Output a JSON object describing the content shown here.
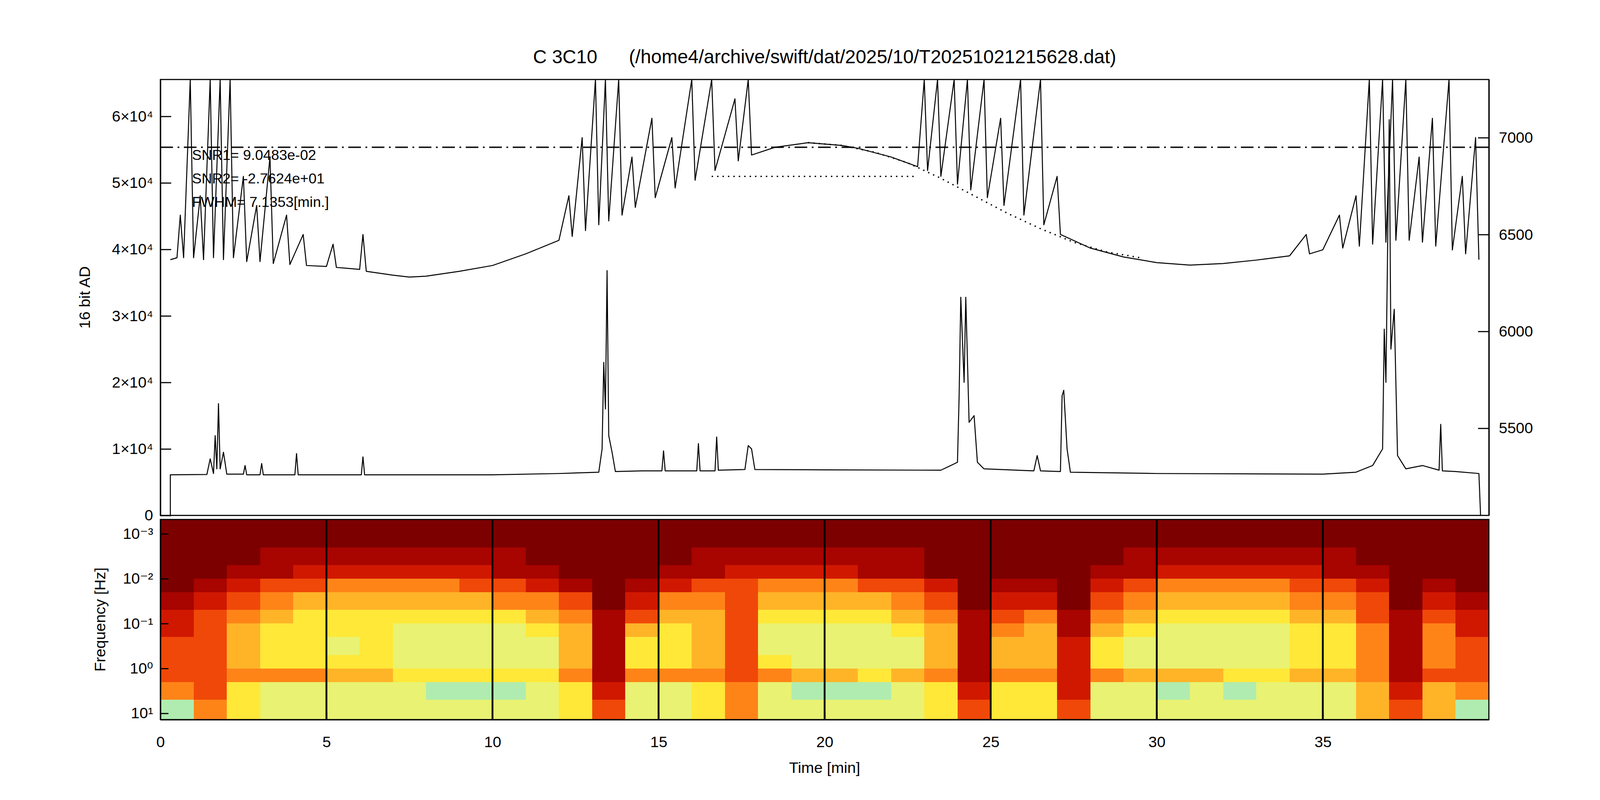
{
  "chart_data": [
    {
      "type": "line",
      "title": "C 3C10      (/home4/archive/swift/dat/2025/10/T20251021215628.dat)",
      "ylabel": "16 bit AD",
      "annotations": [
        "SNR1= 9.0483e-02",
        "SNR2= -2.7624e+01",
        "FWHM= 7.1353[min.]"
      ],
      "xlim": [
        0,
        40
      ],
      "ylim": [
        0,
        65536
      ],
      "yticks": [
        0,
        {
          "value": 10000,
          "label": "1×10⁴"
        },
        {
          "value": 20000,
          "label": "2×10⁴"
        },
        {
          "value": 30000,
          "label": "3×10⁴"
        },
        {
          "value": 40000,
          "label": "4×10⁴"
        },
        {
          "value": 50000,
          "label": "5×10⁴"
        },
        {
          "value": 60000,
          "label": "6×10⁴"
        }
      ],
      "y2lim": [
        5050,
        7300
      ],
      "y2ticks": [
        5500,
        6000,
        6500,
        7000
      ],
      "tick_labels": "y",
      "series": [
        {
          "color": "#000000",
          "line_style": "solid",
          "x": [
            0.3,
            0.3,
            1.4,
            1.5,
            1.6,
            1.65,
            1.7,
            1.75,
            1.8,
            1.9,
            2.0,
            2.5,
            2.55,
            2.6,
            3.0,
            3.05,
            3.1,
            4.05,
            4.1,
            4.15,
            6.05,
            6.1,
            6.15,
            10,
            12,
            13.2,
            13.3,
            13.35,
            13.4,
            13.45,
            13.5,
            13.6,
            13.7,
            14.5,
            15.1,
            15.15,
            15.2,
            16.15,
            16.2,
            16.25,
            16.7,
            16.75,
            16.8,
            17.6,
            17.7,
            17.8,
            17.9,
            20,
            23.5,
            23.8,
            24.0,
            24.05,
            24.1,
            24.2,
            24.25,
            24.35,
            24.5,
            24.6,
            24.8,
            26.3,
            26.4,
            26.5,
            27.1,
            27.15,
            27.2,
            27.3,
            27.4,
            30,
            35,
            36,
            36.5,
            36.8,
            36.85,
            36.9,
            37.0,
            37.05,
            37.15,
            37.25,
            37.5,
            38.0,
            38.5,
            38.55,
            38.6,
            39.0,
            39.7,
            39.75
          ],
          "values": [
            0,
            6100,
            6150,
            8500,
            6300,
            12000,
            7000,
            16800,
            7000,
            9500,
            6200,
            6200,
            7500,
            6100,
            6100,
            7800,
            6100,
            6100,
            9300,
            6100,
            6100,
            8800,
            6100,
            6100,
            6300,
            6500,
            10000,
            23000,
            16000,
            36800,
            12000,
            9500,
            6600,
            6700,
            6700,
            9700,
            6700,
            6700,
            10800,
            6700,
            6700,
            11800,
            6800,
            6900,
            10500,
            10000,
            6900,
            6850,
            6800,
            7500,
            8000,
            18000,
            32800,
            20000,
            32800,
            14000,
            15000,
            8000,
            7000,
            6700,
            9000,
            6700,
            6600,
            18000,
            18800,
            10000,
            6500,
            6300,
            6200,
            6500,
            7500,
            10000,
            28000,
            20000,
            59500,
            25000,
            31000,
            9000,
            7000,
            7500,
            6800,
            13700,
            6700,
            6600,
            6300,
            0
          ]
        },
        {
          "color": "#000000",
          "line_style": "solid",
          "axis": "y2",
          "x": [
            0.3,
            0.5,
            0.6,
            0.7,
            0.9,
            1.0,
            1.2,
            1.3,
            1.5,
            1.6,
            1.8,
            1.9,
            2.1,
            2.2,
            2.5,
            2.6,
            2.9,
            3.0,
            3.3,
            3.4,
            3.8,
            3.9,
            4.3,
            4.4,
            5.0,
            5.2,
            5.3,
            6.0,
            6.1,
            6.2,
            7.0,
            7.5,
            8.0,
            9.0,
            10.0,
            11.0,
            12.0,
            12.3,
            12.4,
            12.7,
            12.8,
            13.1,
            13.2,
            13.4,
            13.5,
            13.8,
            13.9,
            14.2,
            14.3,
            14.8,
            14.9,
            15.4,
            15.5,
            16.0,
            16.1,
            16.6,
            16.7,
            17.3,
            17.4,
            17.7,
            17.8,
            18.5,
            19.5,
            20.5,
            21.0,
            22.0,
            22.8,
            23.0,
            23.1,
            23.4,
            23.5,
            23.9,
            24.0,
            24.3,
            24.4,
            24.8,
            24.9,
            25.3,
            25.4,
            25.9,
            26.0,
            26.5,
            26.6,
            27.0,
            27.1,
            28.0,
            29.0,
            30.0,
            31.0,
            32.0,
            33.0,
            34.0,
            34.5,
            34.6,
            35.0,
            35.5,
            35.6,
            36.0,
            36.1,
            36.4,
            36.5,
            36.8,
            36.9,
            37.1,
            37.2,
            37.5,
            37.6,
            37.9,
            38.0,
            38.3,
            38.4,
            38.8,
            38.9,
            39.2,
            39.3,
            39.6,
            39.7
          ],
          "values": [
            6370,
            6380,
            6600,
            6380,
            7300,
            6380,
            6700,
            6370,
            7300,
            6380,
            7300,
            6370,
            7300,
            6380,
            6800,
            6360,
            6650,
            6360,
            6900,
            6350,
            6600,
            6345,
            6500,
            6340,
            6335,
            6450,
            6330,
            6320,
            6500,
            6310,
            6290,
            6280,
            6285,
            6310,
            6340,
            6400,
            6470,
            6700,
            6490,
            7000,
            6520,
            7300,
            6550,
            7300,
            6570,
            7300,
            6600,
            6900,
            6640,
            7100,
            6690,
            7000,
            6740,
            7300,
            6780,
            7300,
            6830,
            7200,
            6880,
            7300,
            6910,
            6950,
            6974,
            6960,
            6945,
            6900,
            6850,
            7300,
            6830,
            7300,
            6800,
            7300,
            6760,
            7300,
            6730,
            7300,
            6690,
            7100,
            6650,
            7300,
            6600,
            7300,
            6550,
            6800,
            6500,
            6430,
            6384,
            6355,
            6342,
            6350,
            6368,
            6390,
            6500,
            6400,
            6421,
            6600,
            6430,
            6700,
            6440,
            7300,
            6450,
            7300,
            6460,
            7300,
            6470,
            7300,
            6470,
            6900,
            6460,
            7100,
            6440,
            7300,
            6420,
            6800,
            6400,
            7000,
            6370
          ]
        },
        {
          "color": "#000000",
          "line_style": "dotted",
          "axis": "y2",
          "x": [
            19.5,
            20.5,
            21.5,
            22.5,
            23.5,
            24.5,
            25.5,
            26.5,
            27.5,
            28.5,
            29.5
          ],
          "values": [
            6974,
            6960,
            6925,
            6870,
            6790,
            6700,
            6610,
            6530,
            6460,
            6410,
            6380
          ]
        },
        {
          "color": "#000000",
          "line_style": "dotted",
          "axis": "y2",
          "x": [
            16.6,
            22.8
          ],
          "values": [
            6800,
            6800
          ]
        },
        {
          "color": "#000000",
          "line_style": "dashdot",
          "axis": "y2",
          "x": [
            0,
            40
          ],
          "values": [
            6950,
            6950
          ]
        }
      ]
    },
    {
      "type": "heatmap",
      "xlabel": "Time [min]",
      "ylabel": "Frequency [Hz]",
      "xlim": [
        0,
        40
      ],
      "ylim": [
        0.00048,
        13.8
      ],
      "log": "y",
      "grid": true,
      "xticks": [
        0,
        5,
        10,
        15,
        20,
        25,
        30,
        35
      ],
      "yticks": [
        {
          "value": 0.001,
          "label": "10⁻³"
        },
        {
          "value": 0.01,
          "label": "10⁻²"
        },
        {
          "value": 0.1,
          "label": "10⁻¹"
        },
        {
          "value": 1,
          "label": "10⁰"
        },
        {
          "value": 10,
          "label": "10¹"
        }
      ],
      "zlim": [
        0,
        9
      ],
      "x_edges": [
        0,
        1,
        2,
        3,
        4,
        5,
        6,
        7,
        8,
        9,
        10,
        11,
        12,
        13,
        14,
        15,
        16,
        17,
        18,
        19,
        20,
        21,
        22,
        23,
        24,
        25,
        26,
        27,
        28,
        29,
        30,
        31,
        32,
        33,
        34,
        35,
        36,
        37,
        38,
        39,
        40
      ],
      "y_edges": [
        0.00048,
        0.001,
        0.002,
        0.005,
        0.01,
        0.02,
        0.05,
        0.1,
        0.2,
        0.5,
        1,
        2,
        5,
        13.8
      ],
      "cells": [
        [
          9,
          9,
          9,
          9,
          9,
          9,
          9,
          9,
          9,
          9,
          9,
          9,
          9,
          9,
          9,
          9,
          9,
          9,
          9,
          9,
          9,
          9,
          9,
          9,
          9,
          9,
          9,
          9,
          9,
          9,
          9,
          9,
          9,
          9,
          9,
          9,
          9,
          9,
          9,
          9
        ],
        [
          9,
          9,
          9,
          9,
          9,
          9,
          9,
          9,
          9,
          9,
          9,
          9,
          9,
          9,
          9,
          9,
          9,
          9,
          9,
          9,
          9,
          9,
          9,
          9,
          9,
          9,
          9,
          9,
          9,
          9,
          9,
          9,
          9,
          9,
          9,
          9,
          9,
          9,
          9,
          9
        ],
        [
          9,
          9,
          9,
          8,
          8,
          8,
          8,
          8,
          8,
          8,
          8,
          9,
          9,
          9,
          9,
          9,
          8,
          8,
          8,
          8,
          8,
          8,
          8,
          9,
          9,
          9,
          9,
          9,
          9,
          8,
          8,
          8,
          8,
          8,
          8,
          8,
          9,
          9,
          9,
          9
        ],
        [
          9,
          9,
          8,
          8,
          7,
          7,
          7,
          7,
          7,
          7,
          8,
          8,
          9,
          9,
          9,
          8,
          8,
          7,
          7,
          7,
          7,
          8,
          8,
          9,
          9,
          9,
          9,
          9,
          8,
          8,
          7,
          7,
          7,
          7,
          7,
          8,
          8,
          9,
          9,
          9
        ],
        [
          9,
          8,
          7,
          6,
          6,
          5,
          5,
          5,
          5,
          6,
          6,
          7,
          8,
          9,
          8,
          7,
          6,
          6,
          5,
          5,
          5,
          6,
          6,
          7,
          9,
          8,
          8,
          9,
          7,
          6,
          5,
          5,
          5,
          5,
          6,
          6,
          7,
          9,
          8,
          9
        ],
        [
          8,
          7,
          6,
          5,
          4,
          4,
          4,
          4,
          4,
          4,
          5,
          5,
          6,
          9,
          7,
          5,
          5,
          6,
          4,
          4,
          4,
          4,
          5,
          6,
          9,
          7,
          7,
          9,
          6,
          5,
          4,
          4,
          4,
          4,
          5,
          5,
          6,
          9,
          7,
          8
        ],
        [
          7,
          6,
          5,
          4,
          3,
          3,
          3,
          3,
          3,
          3,
          3,
          4,
          5,
          8,
          6,
          4,
          4,
          6,
          3,
          3,
          3,
          3,
          4,
          5,
          8,
          6,
          5,
          8,
          5,
          4,
          3,
          3,
          3,
          3,
          4,
          4,
          6,
          8,
          6,
          7
        ],
        [
          7,
          6,
          4,
          3,
          3,
          3,
          3,
          2,
          2,
          2,
          2,
          3,
          4,
          8,
          4,
          3,
          4,
          6,
          2,
          2,
          2,
          2,
          3,
          4,
          8,
          5,
          4,
          8,
          4,
          3,
          2,
          2,
          2,
          2,
          3,
          3,
          5,
          8,
          5,
          7
        ],
        [
          6,
          6,
          4,
          3,
          3,
          2,
          3,
          2,
          2,
          2,
          2,
          2,
          4,
          8,
          3,
          3,
          4,
          6,
          2,
          2,
          2,
          2,
          2,
          4,
          8,
          4,
          4,
          7,
          3,
          2,
          2,
          2,
          2,
          2,
          3,
          3,
          5,
          8,
          5,
          6
        ],
        [
          6,
          6,
          4,
          3,
          3,
          3,
          3,
          2,
          2,
          2,
          2,
          2,
          4,
          8,
          3,
          3,
          4,
          6,
          3,
          2,
          2,
          2,
          2,
          4,
          8,
          4,
          4,
          7,
          3,
          2,
          2,
          2,
          2,
          2,
          3,
          3,
          5,
          8,
          5,
          6
        ],
        [
          6,
          6,
          5,
          5,
          5,
          4,
          4,
          3,
          3,
          3,
          3,
          3,
          5,
          8,
          5,
          5,
          5,
          6,
          5,
          4,
          4,
          3,
          4,
          5,
          8,
          5,
          5,
          7,
          5,
          4,
          4,
          4,
          3,
          3,
          4,
          4,
          5,
          8,
          6,
          6
        ],
        [
          5,
          6,
          3,
          2,
          2,
          2,
          2,
          2,
          1,
          1,
          1,
          2,
          3,
          7,
          2,
          2,
          3,
          5,
          2,
          1,
          1,
          1,
          2,
          3,
          7,
          3,
          3,
          7,
          2,
          2,
          1,
          2,
          1,
          2,
          2,
          2,
          4,
          7,
          4,
          5
        ],
        [
          1,
          5,
          3,
          2,
          2,
          2,
          2,
          2,
          2,
          2,
          2,
          2,
          3,
          6,
          2,
          2,
          3,
          5,
          2,
          2,
          2,
          2,
          2,
          3,
          6,
          3,
          3,
          6,
          2,
          2,
          2,
          2,
          2,
          2,
          2,
          2,
          4,
          6,
          4,
          1
        ]
      ]
    }
  ]
}
